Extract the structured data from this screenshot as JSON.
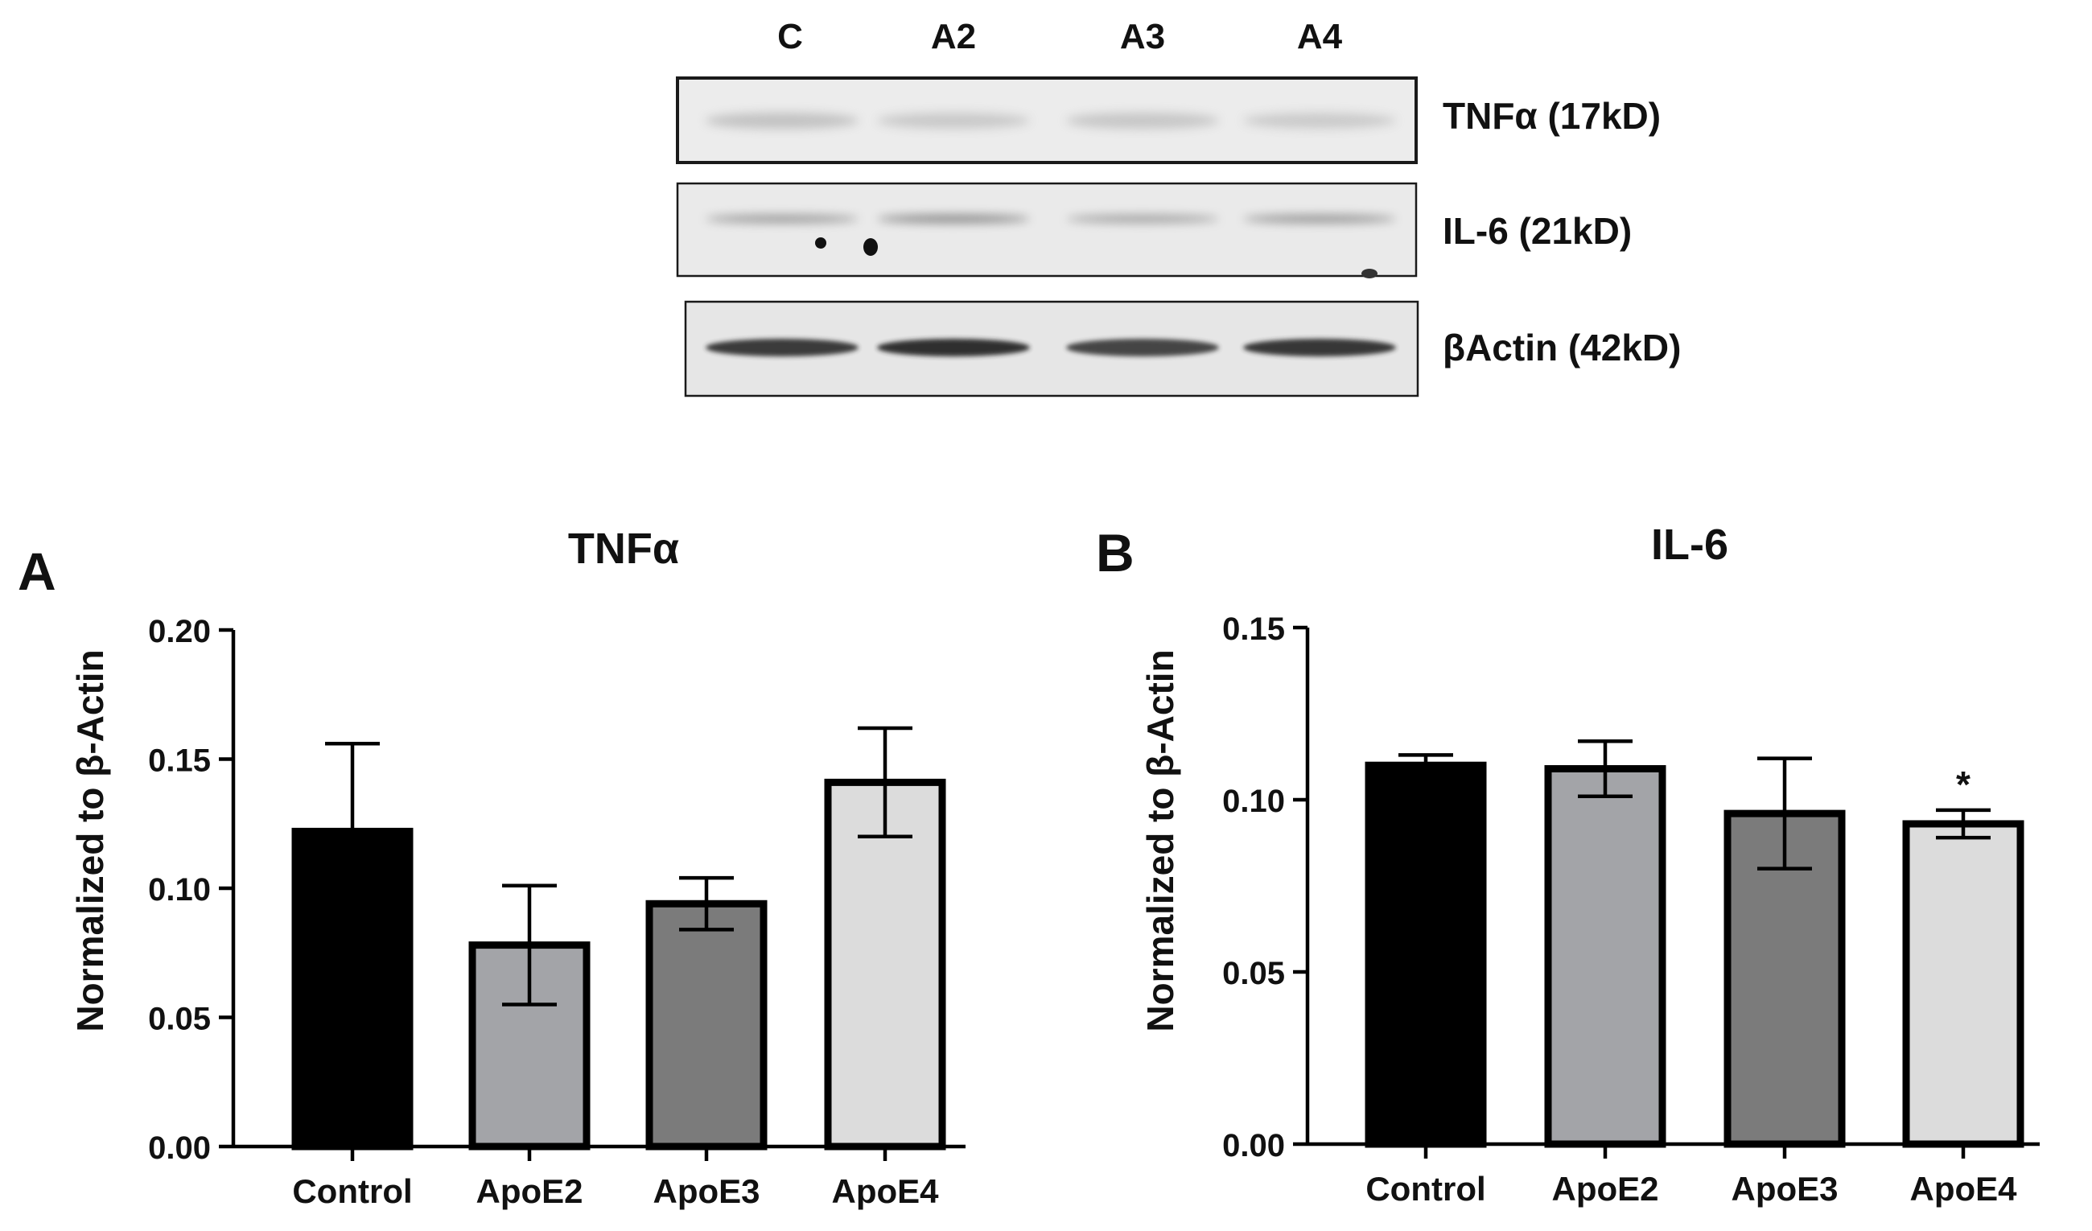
{
  "blot": {
    "lanes": [
      "C",
      "A2",
      "A3",
      "A4"
    ],
    "rows": [
      {
        "label": "TNFα (17kD)",
        "band_intensity": [
          0.22,
          0.18,
          0.2,
          0.17
        ]
      },
      {
        "label": "IL-6 (21kD)",
        "band_intensity": [
          0.45,
          0.55,
          0.4,
          0.48
        ]
      },
      {
        "label": "βActin (42kD)",
        "band_intensity": [
          0.9,
          0.95,
          0.85,
          0.92
        ]
      }
    ]
  },
  "colors": {
    "control": "#000000",
    "apoe2": "#a3a4a8",
    "apoe3": "#7b7b7b",
    "apoe4": "#dcdcdc"
  },
  "chart_data": [
    {
      "type": "bar",
      "panel": "A",
      "title": "TNFα",
      "ylabel": "Normalized to β-Actin",
      "xlabel": "",
      "categories": [
        "Control",
        "ApoE2",
        "ApoE3",
        "ApoE4"
      ],
      "values": [
        0.122,
        0.078,
        0.094,
        0.141
      ],
      "error": [
        0.034,
        0.023,
        0.01,
        0.021
      ],
      "ylim": [
        0,
        0.2
      ],
      "yticks": [
        "0.00",
        "0.05",
        "0.10",
        "0.15",
        "0.20"
      ],
      "annotations": [
        "",
        "",
        "",
        ""
      ]
    },
    {
      "type": "bar",
      "panel": "B",
      "title": "IL-6",
      "ylabel": "Normalized to β-Actin",
      "xlabel": "",
      "categories": [
        "Control",
        "ApoE2",
        "ApoE3",
        "ApoE4"
      ],
      "values": [
        0.11,
        0.109,
        0.096,
        0.093
      ],
      "error": [
        0.003,
        0.008,
        0.016,
        0.004
      ],
      "ylim": [
        0,
        0.15
      ],
      "yticks": [
        "0.00",
        "0.05",
        "0.10",
        "0.15"
      ],
      "annotations": [
        "",
        "",
        "",
        "*"
      ]
    }
  ]
}
